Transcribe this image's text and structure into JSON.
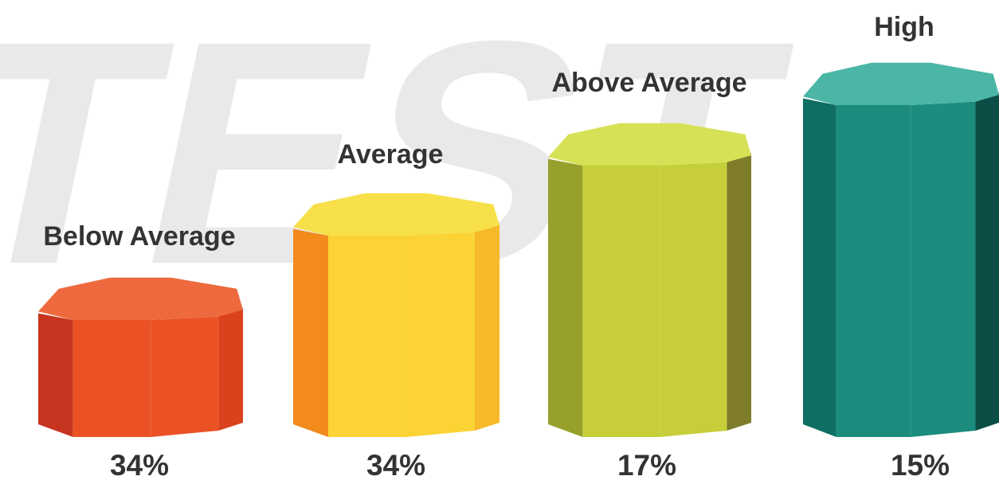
{
  "watermark": "TEST",
  "chart_data": {
    "type": "bar",
    "title": "",
    "xlabel": "",
    "ylabel": "",
    "categories": [
      "Below Average",
      "Average",
      "Above Average",
      "High"
    ],
    "values": [
      34,
      34,
      17,
      15
    ],
    "value_labels": [
      "34%",
      "34%",
      "17%",
      "15%"
    ],
    "grid": false,
    "legend": "none",
    "colors": [
      {
        "top": "#ee6a3e",
        "left": "#c7341f",
        "front": "#ea5225",
        "right": "#d9421c"
      },
      {
        "top": "#f7e04a",
        "left": "#f28a1c",
        "front": "#fbd334",
        "right": "#f6b92a"
      },
      {
        "top": "#d6e156",
        "left": "#98a02c",
        "front": "#c6cf3a",
        "right": "#7f7d2a"
      },
      {
        "top": "#4bb6a5",
        "left": "#0e6e63",
        "front": "#1b8c7d",
        "right": "#0c4e46"
      }
    ]
  }
}
